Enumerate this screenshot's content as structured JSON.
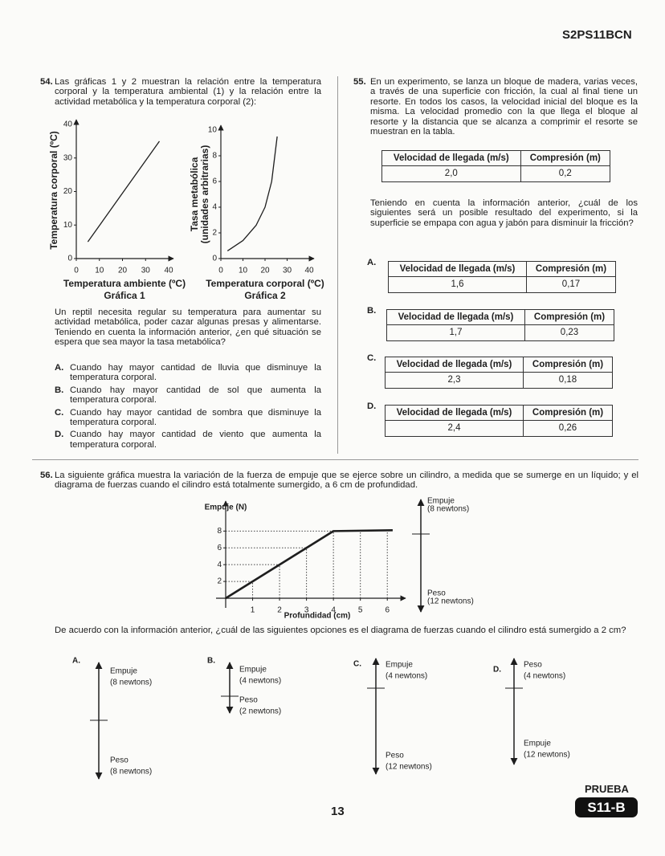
{
  "header": {
    "code": "S2PS11BCN"
  },
  "q54": {
    "number": "54.",
    "stem": "Las gráficas 1 y 2 muestran la relación entre la temperatura corporal y la temperatura ambiental (1) y la relación entre la actividad metabólica y la temperatura corporal (2):",
    "graph1": {
      "ylabel": "Temperatura corporal (ºC)",
      "xlabel": "Temperatura ambiente (ºC)",
      "caption": "Gráfica 1",
      "xlim": [
        0,
        40
      ],
      "ylim": [
        0,
        40
      ],
      "xticks": [
        0,
        10,
        20,
        30,
        40
      ],
      "yticks": [
        0,
        10,
        20,
        30,
        40
      ],
      "x": [
        5,
        36
      ],
      "y": [
        5,
        35
      ]
    },
    "graph2": {
      "ylabel": [
        "Tasa metabólica",
        "(unidades arbitrarias)"
      ],
      "xlabel": "Temperatura corporal (ºC)",
      "caption": "Gráfica 2",
      "xlim": [
        0,
        40
      ],
      "ylim": [
        0,
        10
      ],
      "xticks": [
        0,
        10,
        20,
        30,
        40
      ],
      "yticks": [
        0,
        2,
        4,
        6,
        8,
        10
      ],
      "x": [
        3,
        10,
        16,
        20,
        23,
        25.5
      ],
      "y": [
        0.6,
        1.4,
        2.6,
        4,
        6,
        9.5
      ]
    },
    "prompt": "Un reptil necesita regular su temperatura para aumentar su actividad metabólica, poder cazar algunas presas y alimentarse. Teniendo en cuenta la información anterior, ¿en qué situación se espera que sea mayor la tasa metabólica?",
    "options": [
      {
        "letter": "A.",
        "text": "Cuando hay mayor cantidad de lluvia que disminuye la temperatura corporal."
      },
      {
        "letter": "B.",
        "text": "Cuando hay mayor cantidad de sol que aumenta la temperatura corporal."
      },
      {
        "letter": "C.",
        "text": "Cuando hay mayor cantidad de sombra que disminuye la temperatura corporal."
      },
      {
        "letter": "D.",
        "text": "Cuando hay mayor cantidad de viento que aumenta la temperatura corporal."
      }
    ]
  },
  "q55": {
    "number": "55.",
    "stem": "En un experimento, se lanza un bloque de madera, varias veces, a través de una superficie con fricción, la cual al final tiene un resorte. En todos los casos, la velocidad inicial del bloque es la misma. La velocidad promedio con la que llega el bloque al resorte y la distancia que se alcanza a comprimir el resorte se muestran en la tabla.",
    "table": {
      "headers": [
        "Velocidad de llegada (m/s)",
        "Compresión (m)"
      ],
      "row": [
        "2,0",
        "0,2"
      ]
    },
    "prompt": "Teniendo en cuenta la información anterior, ¿cuál de los siguientes será un posible resultado del experimento, si la superficie se empapa con agua y jabón para disminuir la fricción?",
    "options": [
      {
        "letter": "A.",
        "headers": [
          "Velocidad de llegada (m/s)",
          "Compresión (m)"
        ],
        "row": [
          "1,6",
          "0,17"
        ]
      },
      {
        "letter": "B.",
        "headers": [
          "Velocidad de llegada (m/s)",
          "Compresión (m)"
        ],
        "row": [
          "1,7",
          "0,23"
        ]
      },
      {
        "letter": "C.",
        "headers": [
          "Velocidad de llegada (m/s)",
          "Compresión (m)"
        ],
        "row": [
          "2,3",
          "0,18"
        ]
      },
      {
        "letter": "D.",
        "headers": [
          "Velocidad de llegada (m/s)",
          "Compresión (m)"
        ],
        "row": [
          "2,4",
          "0,26"
        ]
      }
    ]
  },
  "q56": {
    "number": "56.",
    "stem": "La siguiente gráfica muestra la variación de la fuerza de empuje que se ejerce sobre un cilindro, a medida que se sumerge en un líquido; y el diagrama de fuerzas cuando el cilindro está totalmente sumergido, a 6 cm de profundidad.",
    "graph": {
      "ylabel": "Empuje (N)",
      "xlabel": "Profundidad (cm)",
      "xlim": [
        0,
        6.5
      ],
      "ylim": [
        0,
        11
      ],
      "xticks": [
        1,
        2,
        3,
        4,
        5,
        6
      ],
      "yticks": [
        2,
        4,
        6,
        8
      ],
      "x": [
        0,
        4,
        6.2
      ],
      "y": [
        0,
        8,
        8.1
      ]
    },
    "diagram": {
      "top": {
        "name": "Empuje",
        "amount": "(8 newtons)"
      },
      "bottom": {
        "name": "Peso",
        "amount": "(12 newtons)"
      }
    },
    "prompt": "De acuerdo con la información anterior, ¿cuál de las siguientes opciones es el diagrama de fuerzas cuando el cilindro está sumergido a 2 cm?",
    "options": [
      {
        "letter": "A.",
        "top": {
          "name": "Empuje",
          "amount": "(8 newtons)"
        },
        "bottom": {
          "name": "Peso",
          "amount": "(8 newtons)"
        }
      },
      {
        "letter": "B.",
        "top": {
          "name": "Empuje",
          "amount": "(4 newtons)"
        },
        "bottom": {
          "name": "Peso",
          "amount": "(2 newtons)"
        }
      },
      {
        "letter": "C.",
        "top": {
          "name": "Empuje",
          "amount": "(4 newtons)"
        },
        "bottom": {
          "name": "Peso",
          "amount": "(12 newtons)"
        }
      },
      {
        "letter": "D.",
        "top": {
          "name": "Peso",
          "amount": "(4 newtons)"
        },
        "bottom": {
          "name": "Empuje",
          "amount": "(12 newtons)"
        }
      }
    ]
  },
  "footer": {
    "page": "13",
    "badge_top": "PRUEBA",
    "badge": "S11-B"
  }
}
